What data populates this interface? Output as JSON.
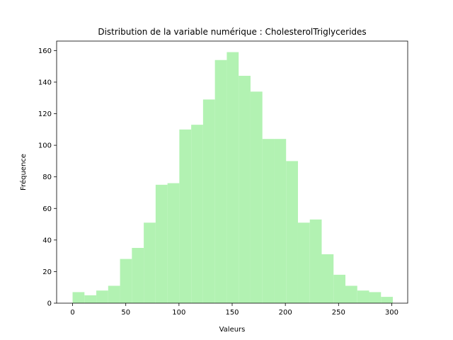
{
  "chart_data": {
    "type": "bar",
    "title": "Distribution de la variable numérique : CholesterolTriglycerides",
    "xlabel": "Valeurs",
    "ylabel": "Fréquence",
    "xlim": [
      -15,
      315
    ],
    "ylim": [
      0,
      166
    ],
    "x_ticks": [
      "0",
      "50",
      "100",
      "150",
      "200",
      "250",
      "300"
    ],
    "y_ticks": [
      "0",
      "20",
      "40",
      "60",
      "80",
      "100",
      "120",
      "140",
      "160"
    ],
    "bar_color": "#b2f2b2",
    "bins": [
      {
        "start": 0,
        "end": 11.15,
        "value": 7
      },
      {
        "start": 11.15,
        "end": 22.3,
        "value": 5
      },
      {
        "start": 22.3,
        "end": 33.45,
        "value": 8
      },
      {
        "start": 33.45,
        "end": 44.6,
        "value": 11
      },
      {
        "start": 44.6,
        "end": 55.75,
        "value": 28
      },
      {
        "start": 55.75,
        "end": 66.9,
        "value": 35
      },
      {
        "start": 66.9,
        "end": 78.05,
        "value": 51
      },
      {
        "start": 78.05,
        "end": 89.2,
        "value": 75
      },
      {
        "start": 89.2,
        "end": 100.35,
        "value": 76
      },
      {
        "start": 100.35,
        "end": 111.5,
        "value": 110
      },
      {
        "start": 111.5,
        "end": 122.65,
        "value": 113
      },
      {
        "start": 122.65,
        "end": 133.8,
        "value": 129
      },
      {
        "start": 133.8,
        "end": 144.95,
        "value": 154
      },
      {
        "start": 144.95,
        "end": 156.1,
        "value": 159
      },
      {
        "start": 156.1,
        "end": 167.25,
        "value": 144
      },
      {
        "start": 167.25,
        "end": 178.4,
        "value": 134
      },
      {
        "start": 178.4,
        "end": 189.55,
        "value": 104
      },
      {
        "start": 189.55,
        "end": 200.7,
        "value": 104
      },
      {
        "start": 200.7,
        "end": 211.85,
        "value": 90
      },
      {
        "start": 211.85,
        "end": 223.0,
        "value": 51
      },
      {
        "start": 223.0,
        "end": 234.15,
        "value": 53
      },
      {
        "start": 234.15,
        "end": 245.3,
        "value": 31
      },
      {
        "start": 245.3,
        "end": 256.45,
        "value": 18
      },
      {
        "start": 256.45,
        "end": 267.6,
        "value": 11
      },
      {
        "start": 267.6,
        "end": 278.75,
        "value": 8
      },
      {
        "start": 278.75,
        "end": 289.9,
        "value": 7
      },
      {
        "start": 289.9,
        "end": 301.0,
        "value": 4
      }
    ]
  }
}
